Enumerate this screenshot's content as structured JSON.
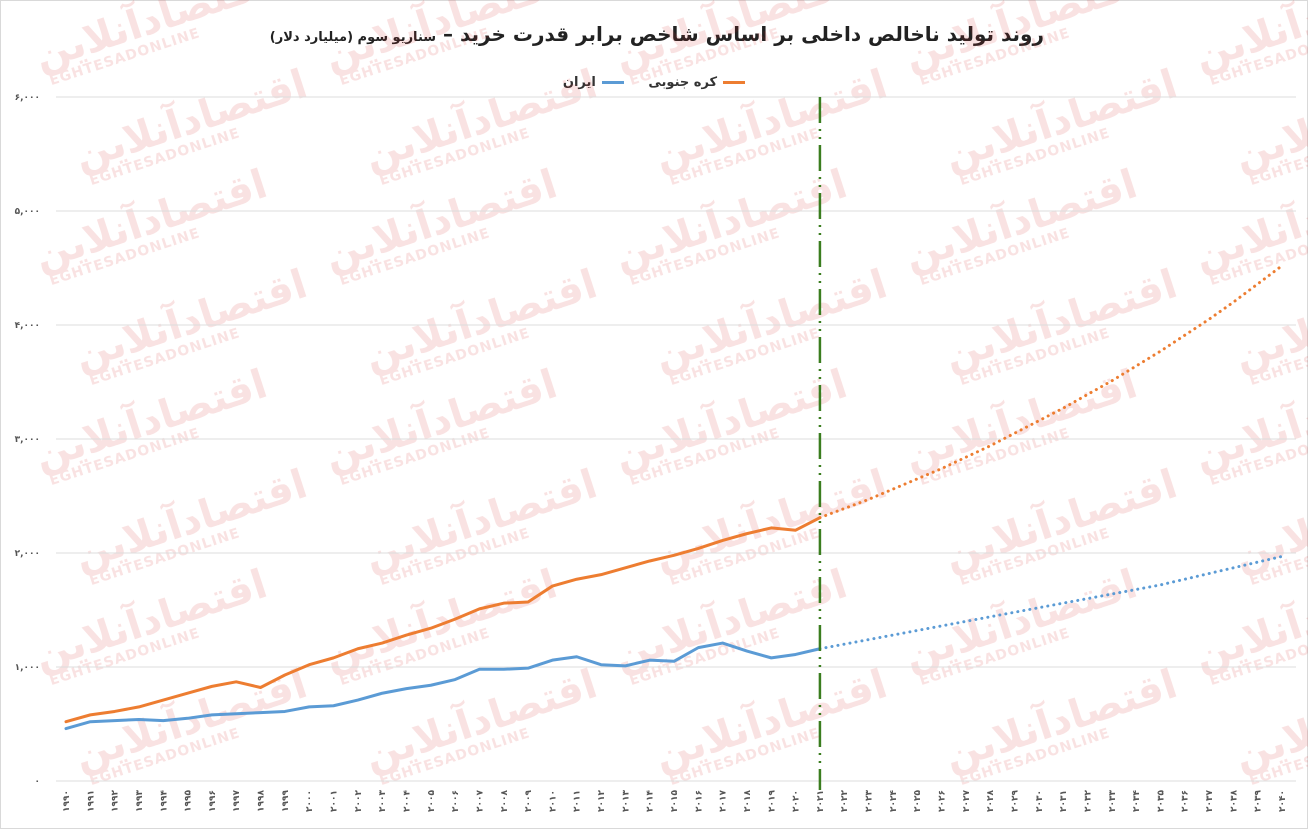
{
  "chart_data": {
    "type": "line",
    "title": "روند تولید ناخالص داخلی بر اساس شاخص برابر قدرت خرید –",
    "subtitle": "سناریو سوم (میلیارد دلار)",
    "ylim": [
      0,
      6000
    ],
    "y_ticks": [
      0,
      1000,
      2000,
      3000,
      4000,
      5000,
      6000
    ],
    "y_tick_labels": [
      "۰",
      "۱,۰۰۰",
      "۲,۰۰۰",
      "۳,۰۰۰",
      "۴,۰۰۰",
      "۵,۰۰۰",
      "۶,۰۰۰"
    ],
    "x": [
      1990,
      1991,
      1992,
      1993,
      1994,
      1995,
      1996,
      1997,
      1998,
      1999,
      2000,
      2001,
      2002,
      2003,
      2004,
      2005,
      2006,
      2007,
      2008,
      2009,
      2010,
      2011,
      2012,
      2013,
      2014,
      2015,
      2016,
      2017,
      2018,
      2019,
      2020,
      2021,
      2022,
      2023,
      2024,
      2025,
      2026,
      2027,
      2028,
      2029,
      2030,
      2031,
      2032,
      2033,
      2034,
      2035,
      2036,
      2037,
      2038,
      2039,
      2040
    ],
    "x_tick_labels": [
      "۱۹۹۰",
      "۱۹۹۱",
      "۱۹۹۲",
      "۱۹۹۳",
      "۱۹۹۴",
      "۱۹۹۵",
      "۱۹۹۶",
      "۱۹۹۷",
      "۱۹۹۸",
      "۱۹۹۹",
      "۲۰۰۰",
      "۲۰۰۱",
      "۲۰۰۲",
      "۲۰۰۳",
      "۲۰۰۴",
      "۲۰۰۵",
      "۲۰۰۶",
      "۲۰۰۷",
      "۲۰۰۸",
      "۲۰۰۹",
      "۲۰۱۰",
      "۲۰۱۱",
      "۲۰۱۲",
      "۲۰۱۳",
      "۲۰۱۴",
      "۲۰۱۵",
      "۲۰۱۶",
      "۲۰۱۷",
      "۲۰۱۸",
      "۲۰۱۹",
      "۲۰۲۰",
      "۲۰۲۱",
      "۲۰۲۲",
      "۲۰۲۳",
      "۲۰۲۴",
      "۲۰۲۵",
      "۲۰۲۶",
      "۲۰۲۷",
      "۲۰۲۸",
      "۲۰۲۹",
      "۲۰۳۰",
      "۲۰۳۱",
      "۲۰۳۲",
      "۲۰۳۳",
      "۲۰۳۴",
      "۲۰۳۵",
      "۲۰۳۶",
      "۲۰۳۷",
      "۲۰۳۸",
      "۲۰۳۹",
      "۲۰۴۰"
    ],
    "divider_x": 2021,
    "grid": true,
    "legend_position": "top-center",
    "series": [
      {
        "name": "کره جنوبی",
        "color": "#ED7D31",
        "values": [
          520,
          580,
          610,
          650,
          710,
          770,
          830,
          870,
          820,
          930,
          1020,
          1080,
          1160,
          1210,
          1280,
          1340,
          1420,
          1510,
          1560,
          1570,
          1710,
          1770,
          1810,
          1870,
          1930,
          1980,
          2040,
          2110,
          2170,
          2220,
          2200,
          2310,
          2390,
          2470,
          2560,
          2650,
          2740,
          2840,
          2940,
          3050,
          3160,
          3270,
          3390,
          3510,
          3640,
          3770,
          3910,
          4050,
          4200,
          4360,
          4520
        ]
      },
      {
        "name": "ایران",
        "color": "#5B9BD5",
        "values": [
          460,
          520,
          530,
          540,
          530,
          550,
          580,
          590,
          600,
          610,
          650,
          660,
          710,
          770,
          810,
          840,
          890,
          980,
          980,
          990,
          1060,
          1090,
          1020,
          1010,
          1060,
          1050,
          1170,
          1210,
          1140,
          1080,
          1110,
          1160,
          1200,
          1240,
          1280,
          1320,
          1360,
          1400,
          1440,
          1480,
          1520,
          1560,
          1600,
          1640,
          1680,
          1720,
          1770,
          1820,
          1870,
          1920,
          1970
        ]
      }
    ]
  },
  "watermark": {
    "arabic": "اقتصادآنلاین",
    "latin": "EGHTESADONLINE"
  }
}
